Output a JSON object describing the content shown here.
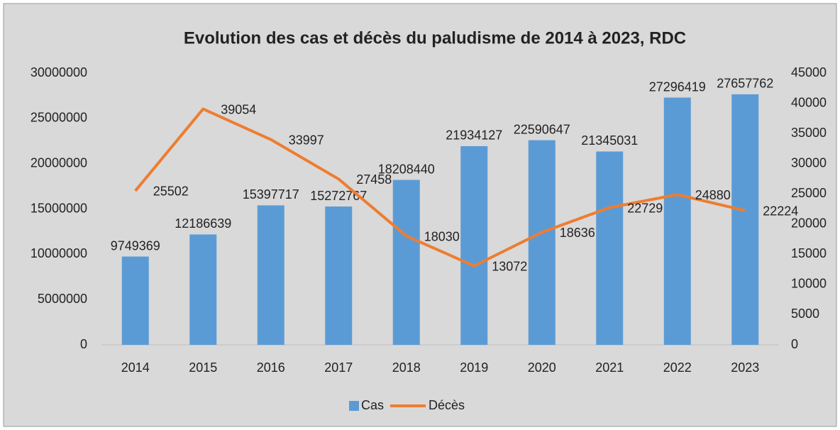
{
  "chart_data": {
    "type": "bar",
    "title": "Evolution des cas et décès du paludisme de 2014 à 2023, RDC",
    "categories": [
      "2014",
      "2015",
      "2016",
      "2017",
      "2018",
      "2019",
      "2020",
      "2021",
      "2022",
      "2023"
    ],
    "series": [
      {
        "name": "Cas",
        "color": "#5b9bd5",
        "values": [
          9749369,
          12186639,
          15397717,
          15272767,
          18208440,
          21934127,
          22590647,
          21345031,
          27296419,
          27657762
        ]
      },
      {
        "name": "Décès",
        "type": "line",
        "axis": "y2",
        "color": "#ed7d31",
        "values": [
          25502,
          39054,
          33997,
          27458,
          18030,
          13072,
          18636,
          22729,
          24880,
          22224
        ]
      }
    ],
    "ylim": [
      0,
      30000000
    ],
    "yticks": [
      0,
      5000000,
      10000000,
      15000000,
      20000000,
      25000000,
      30000000
    ],
    "y2lim": [
      0,
      45000
    ],
    "y2ticks": [
      0,
      5000,
      10000,
      15000,
      20000,
      25000,
      30000,
      35000,
      40000,
      45000
    ],
    "grid": false,
    "legend": "bottom"
  }
}
